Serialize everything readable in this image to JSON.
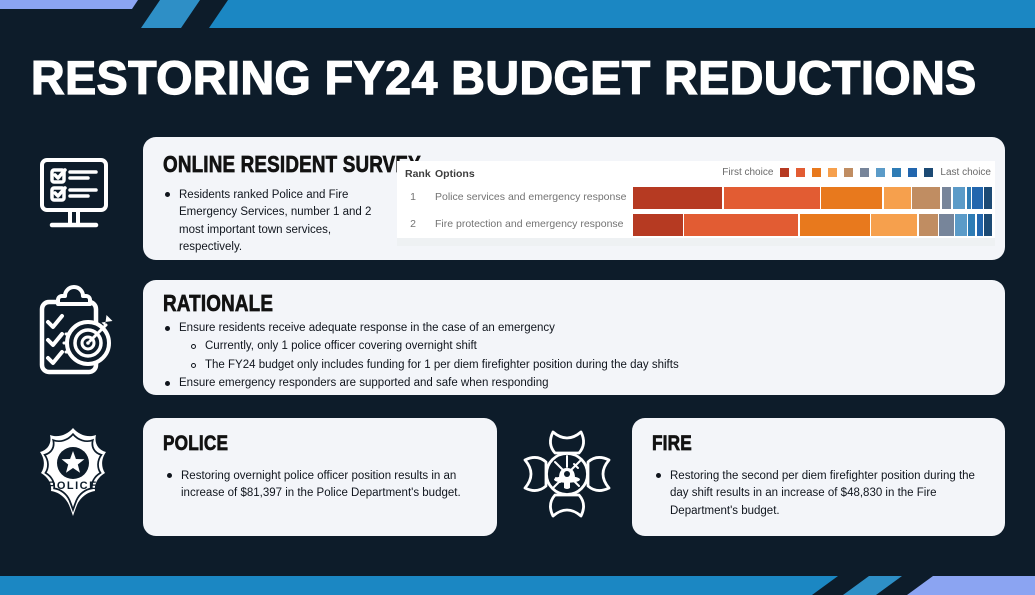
{
  "title": "RESTORING FY24 BUDGET REDUCTIONS",
  "colors": {
    "background": "#0d1c2a",
    "band_blue": "#1b87c3",
    "stripe_blue": "#2e8fc6",
    "periwinkle": "#8ba4f2",
    "card_bg": "#f3f5f9",
    "panel_white": "#ffffff",
    "heading_text": "#121212",
    "body_text": "#10151d",
    "table_text_gray": "#737373"
  },
  "survey": {
    "title": "ONLINE RESIDENT SURVEY",
    "bullet": "Residents ranked Police and Fire Emergency Services, number 1 and 2 most important town services, respectively.",
    "table": {
      "rank_header": "Rank",
      "options_header": "Options",
      "legend_first": "First choice",
      "legend_last": "Last choice"
    }
  },
  "chart_data": {
    "type": "bar",
    "subtype": "horizontal-stacked-ranking",
    "legend": {
      "first_label": "First choice",
      "last_label": "Last choice",
      "position": "top-right",
      "swatches": 10
    },
    "colors": [
      "#b63a22",
      "#e25c33",
      "#e8791d",
      "#f6a04d",
      "#c08d62",
      "#77859a",
      "#5b9bc8",
      "#2e7cb5",
      "#2266ae",
      "#1c4a74"
    ],
    "categories": [
      "Police services and emergency response",
      "Fire protection and emergency response"
    ],
    "series": [
      {
        "rank": "1",
        "name": "Police services and emergency response",
        "values": [
          25.8,
          27.7,
          17.6,
          7.8,
          8.1,
          2.8,
          3.6,
          1.1,
          3.1,
          2.2
        ]
      },
      {
        "rank": "2",
        "name": "Fire protection and emergency response",
        "values": [
          14.4,
          33.0,
          20.3,
          13.3,
          5.4,
          4.2,
          3.4,
          2.0,
          1.7,
          2.3
        ]
      }
    ],
    "value_unit": "percent of respondents per choice position (1st through 10th)"
  },
  "rationale": {
    "title": "RATIONALE",
    "items": [
      {
        "level": 1,
        "text": "Ensure residents receive adequate response in the case of an emergency"
      },
      {
        "level": 2,
        "text": "Currently, only 1 police officer covering overnight shift"
      },
      {
        "level": 2,
        "text": "The FY24 budget only includes funding for 1 per diem firefighter position during the day shifts"
      },
      {
        "level": 1,
        "text": "Ensure emergency responders are supported and safe when responding"
      }
    ]
  },
  "police": {
    "title": "POLICE",
    "badge_label": "POLICE",
    "bullet": "Restoring overnight police officer position results in an increase of $81,397 in the Police Department's budget."
  },
  "fire": {
    "title": "FIRE",
    "bullet": "Restoring the second per diem firefighter position during the day shift results in an increase of $48,830 in the Fire Department's budget."
  },
  "icons": [
    "computer-survey-icon",
    "clipboard-target-icon",
    "police-badge-icon",
    "fire-department-cross-icon"
  ]
}
